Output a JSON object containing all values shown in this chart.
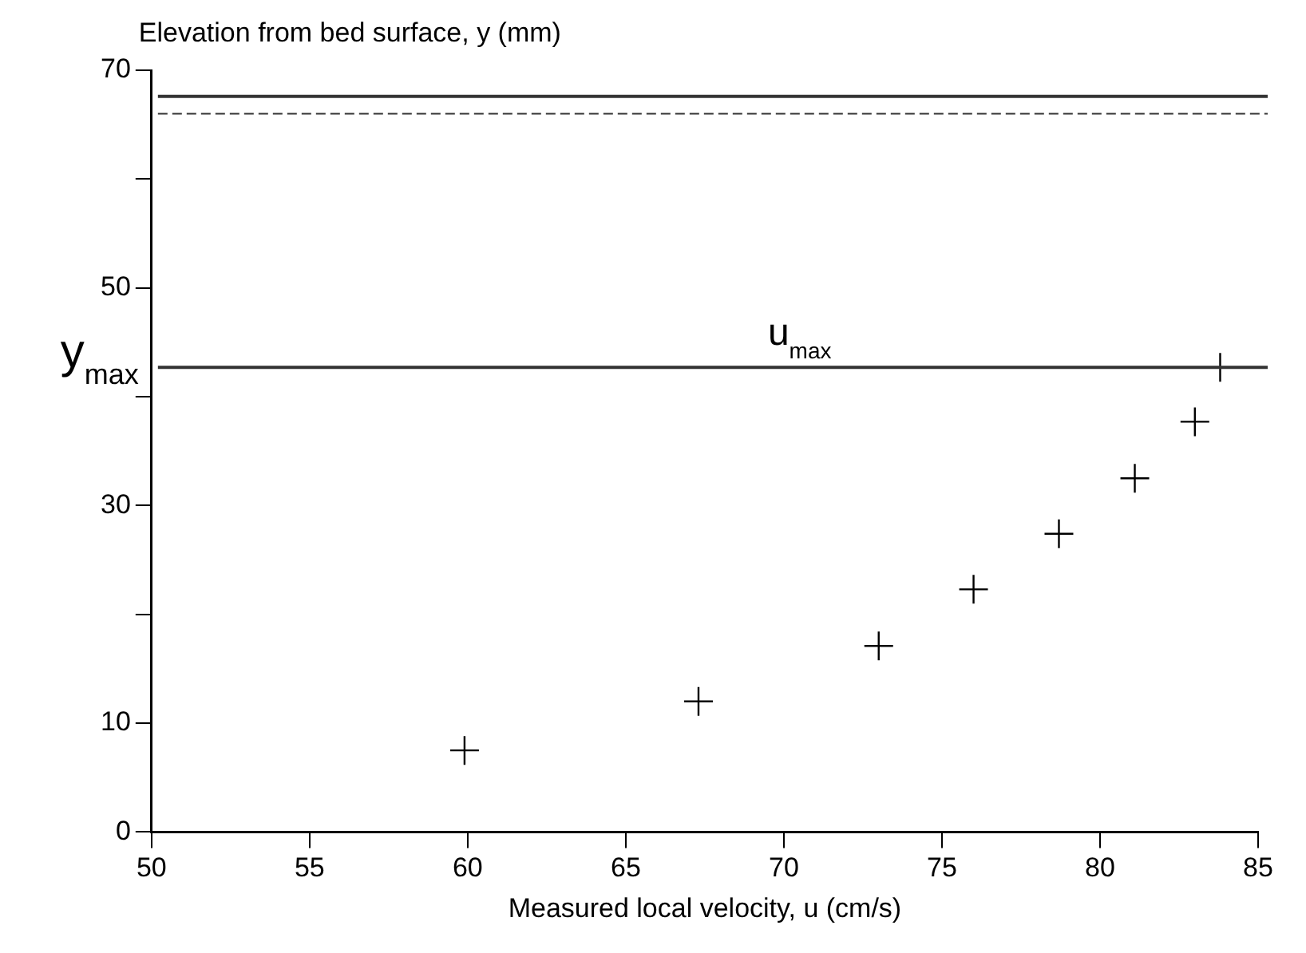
{
  "chart_data": {
    "type": "scatter",
    "ylabel": "Elevation from bed surface, y (mm)",
    "xlabel": "Measured local velocity, u (cm/s)",
    "x": [
      59.9,
      67.3,
      73.0,
      76.0,
      78.7,
      81.1,
      83.0,
      83.8
    ],
    "series": [
      {
        "color": "#000000",
        "values": [
          7.5,
          12.0,
          17.1,
          22.3,
          27.4,
          32.5,
          37.7,
          42.7
        ]
      }
    ],
    "marker": "cross",
    "xlim": [
      50,
      85
    ],
    "xticks": [
      50,
      55,
      60,
      65,
      70,
      75,
      80,
      85
    ],
    "ylim": [
      0,
      70
    ],
    "yticks": [
      0,
      10,
      {
        "value": 20,
        "label": null
      },
      30,
      {
        "value": 40,
        "label": null
      },
      50,
      {
        "value": 60,
        "label": null
      },
      70
    ],
    "ref_lines": [
      {
        "axis": "y",
        "value": 67.6,
        "line_style": "solid",
        "color": "#333333"
      },
      {
        "axis": "y",
        "value": 66.0,
        "line_style": "dashed",
        "color": "#333333"
      },
      {
        "axis": "y",
        "value": 42.7,
        "line_style": "solid",
        "color": "#333333",
        "label": "y$_{max}$"
      }
    ],
    "annotations": [
      {
        "text": "u$_{max}$",
        "x": 70.5,
        "y": 42.7
      }
    ],
    "grid": false,
    "legend": false
  }
}
